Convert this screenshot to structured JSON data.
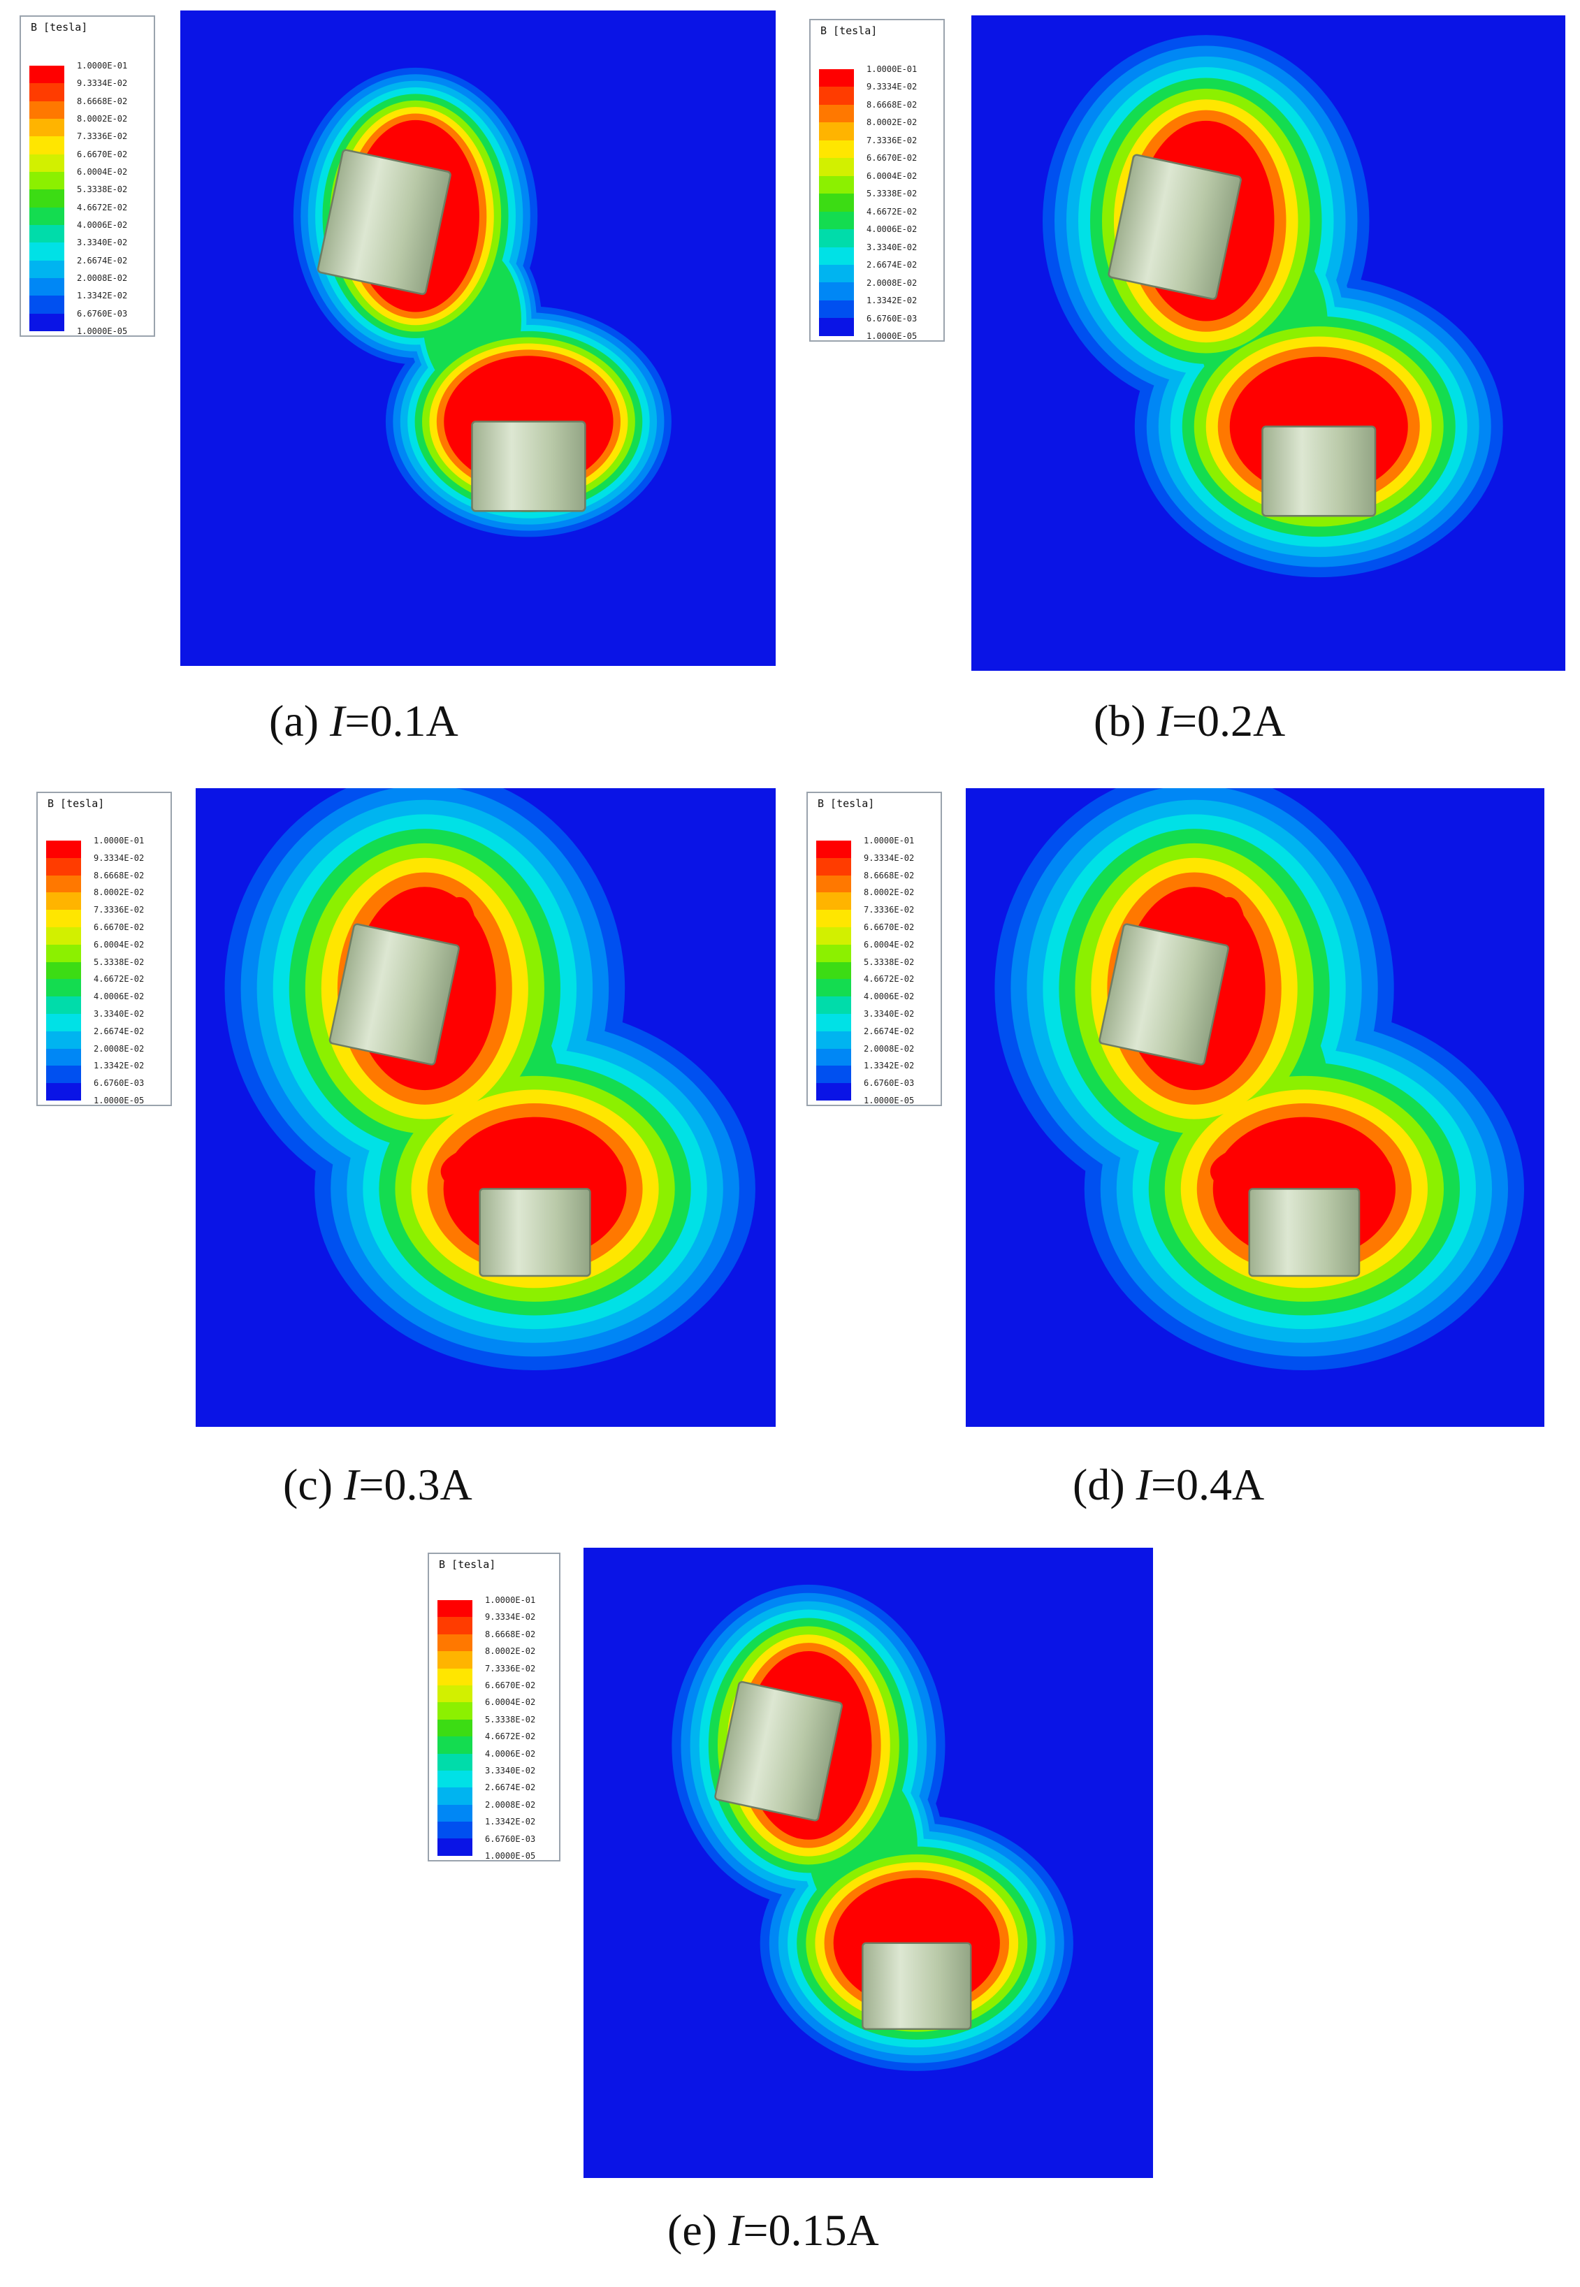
{
  "legend": {
    "title": "B [tesla]",
    "ticks": [
      "1.0000E-01",
      "9.3334E-02",
      "8.6668E-02",
      "8.0002E-02",
      "7.3336E-02",
      "6.6670E-02",
      "6.0004E-02",
      "5.3338E-02",
      "4.6672E-02",
      "4.0006E-02",
      "3.3340E-02",
      "2.6674E-02",
      "2.0008E-02",
      "1.3342E-02",
      "6.6760E-03",
      "1.0000E-05"
    ],
    "colors": [
      "#ff0000",
      "#ff3c00",
      "#ff7800",
      "#ffb400",
      "#ffe600",
      "#d2f000",
      "#8cf000",
      "#3cdc14",
      "#14dc50",
      "#00dcaa",
      "#00e1e6",
      "#00b4f0",
      "#0087f5",
      "#0050f0",
      "#0a14e6"
    ]
  },
  "colors": {
    "background": "#0a14e6",
    "magnet": "#c6d5b6"
  },
  "panels": [
    {
      "id": "a",
      "prefix": "(a) ",
      "variable": "I",
      "equals": "=0.1A",
      "current_A": 0.1
    },
    {
      "id": "b",
      "prefix": "(b) ",
      "variable": "I",
      "equals": "=0.2A",
      "current_A": 0.2
    },
    {
      "id": "c",
      "prefix": "(c) ",
      "variable": "I",
      "equals": "=0.3A",
      "current_A": 0.3
    },
    {
      "id": "d",
      "prefix": "(d) ",
      "variable": "I",
      "equals": "=0.4A",
      "current_A": 0.4
    },
    {
      "id": "e",
      "prefix": "(e) ",
      "variable": "I",
      "equals": "=0.15A",
      "current_A": 0.15
    }
  ]
}
